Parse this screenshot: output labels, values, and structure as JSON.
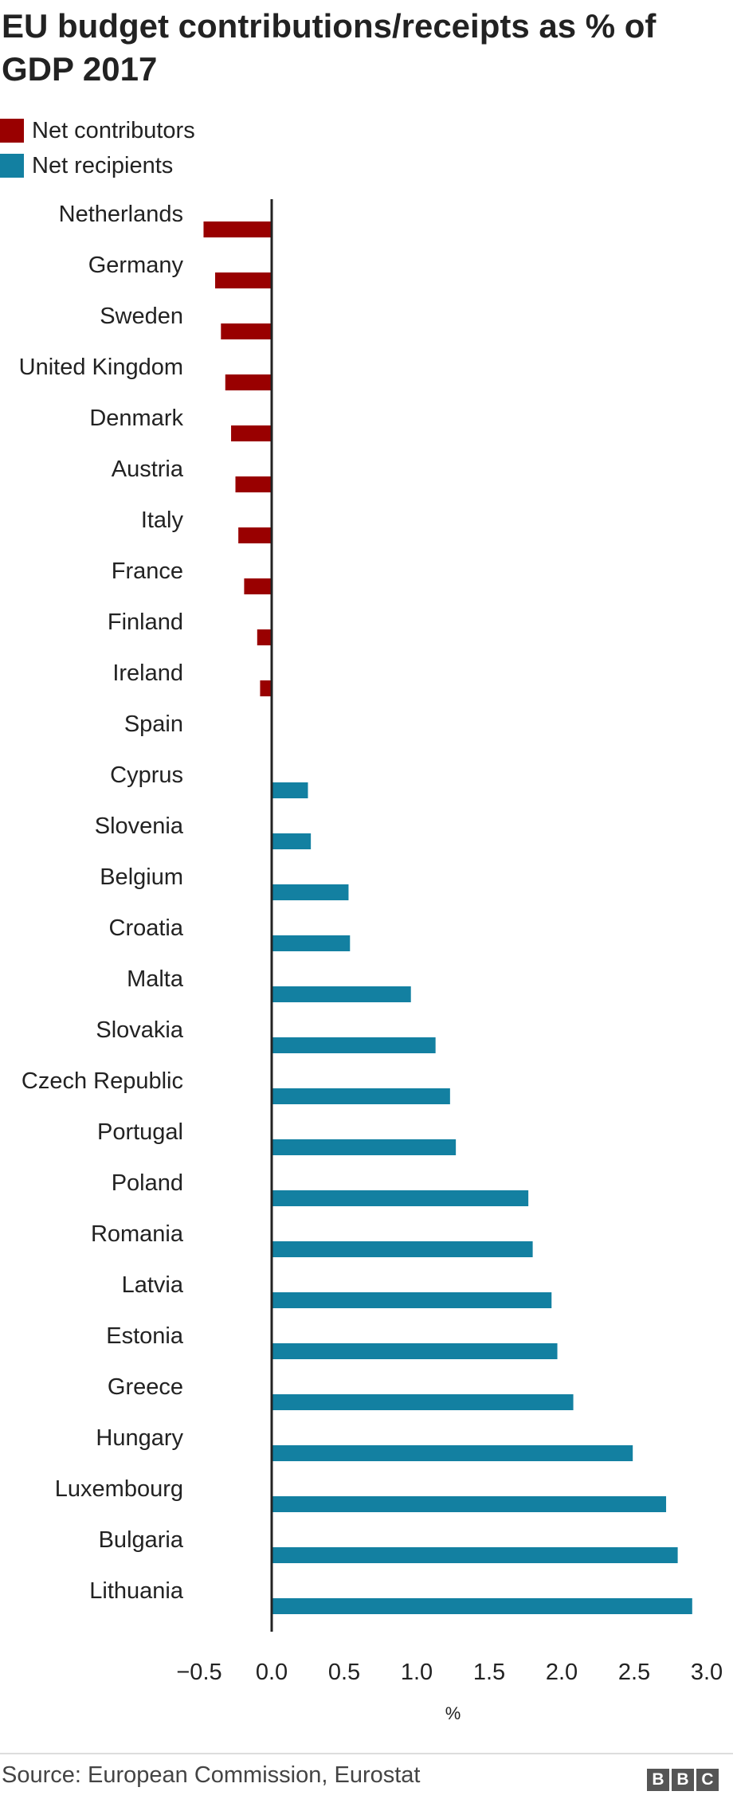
{
  "chart_data": {
    "type": "bar",
    "orientation": "horizontal",
    "title": "EU budget contributions/receipts as % of GDP 2017",
    "xlabel": "%",
    "xlim": [
      -0.5,
      3.0
    ],
    "ticks": [
      "−0.5",
      "0.0",
      "0.5",
      "1.0",
      "1.5",
      "2.0",
      "2.5",
      "3.0"
    ],
    "tick_values": [
      -0.5,
      0.0,
      0.5,
      1.0,
      1.5,
      2.0,
      2.5,
      3.0
    ],
    "grid": false,
    "legend_position": "top-left",
    "categories": [
      "Netherlands",
      "Germany",
      "Sweden",
      "United Kingdom",
      "Denmark",
      "Austria",
      "Italy",
      "France",
      "Finland",
      "Ireland",
      "Spain",
      "Cyprus",
      "Slovenia",
      "Belgium",
      "Croatia",
      "Malta",
      "Slovakia",
      "Czech Republic",
      "Portugal",
      "Poland",
      "Romania",
      "Latvia",
      "Estonia",
      "Greece",
      "Hungary",
      "Luxembourg",
      "Bulgaria",
      "Lithuania"
    ],
    "values": [
      -0.47,
      -0.39,
      -0.35,
      -0.32,
      -0.28,
      -0.25,
      -0.23,
      -0.19,
      -0.1,
      -0.08,
      0.0,
      0.25,
      0.27,
      0.53,
      0.54,
      0.96,
      1.13,
      1.23,
      1.27,
      1.77,
      1.8,
      1.93,
      1.97,
      2.08,
      2.49,
      2.72,
      2.8,
      2.9
    ],
    "legend": [
      {
        "label": "Net contributors",
        "color": "#990000"
      },
      {
        "label": "Net recipients",
        "color": "#1380A1"
      }
    ]
  },
  "source": "Source: European Commission, Eurostat",
  "logo": "BBC"
}
